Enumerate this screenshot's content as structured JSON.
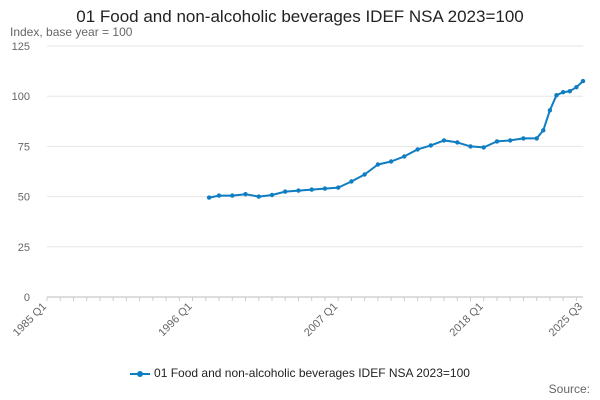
{
  "chart_data": {
    "type": "line",
    "title": "01 Food and non-alcoholic beverages IDEF NSA 2023=100",
    "subtitle": "Index, base year = 100",
    "source_label": "Source:",
    "ylim": [
      0,
      125
    ],
    "yticks": [
      0,
      25,
      50,
      75,
      100,
      125
    ],
    "x_range": [
      "1985 Q1",
      "2025 Q3"
    ],
    "xticks": [
      "1985 Q1",
      "1996 Q1",
      "2007 Q1",
      "2018 Q1",
      "2025 Q3"
    ],
    "grid": "horizontal",
    "legend_position": "bottom",
    "line_color": "#0f7dc2",
    "series": [
      {
        "name": "01 Food and non-alcoholic beverages IDEF NSA 2023=100",
        "x": [
          "1997 Q2",
          "1998 Q1",
          "1999 Q1",
          "2000 Q1",
          "2001 Q1",
          "2002 Q1",
          "2003 Q1",
          "2004 Q1",
          "2005 Q1",
          "2006 Q1",
          "2007 Q1",
          "2008 Q1",
          "2009 Q1",
          "2010 Q1",
          "2011 Q1",
          "2012 Q1",
          "2013 Q1",
          "2014 Q1",
          "2015 Q1",
          "2016 Q1",
          "2017 Q1",
          "2018 Q1",
          "2019 Q1",
          "2020 Q1",
          "2021 Q1",
          "2022 Q1",
          "2022 Q3",
          "2023 Q1",
          "2023 Q3",
          "2024 Q1",
          "2024 Q3",
          "2025 Q1",
          "2025 Q3"
        ],
        "values": [
          49.5,
          50.5,
          50.5,
          51.2,
          50.0,
          50.8,
          52.5,
          53.0,
          53.5,
          54.0,
          54.5,
          57.5,
          61.0,
          66.0,
          67.5,
          70.0,
          73.5,
          75.5,
          78.0,
          77.0,
          75.0,
          74.5,
          77.5,
          78.0,
          79.0,
          79.0,
          83.0,
          93.0,
          100.5,
          102.0,
          102.5,
          104.5,
          107.5
        ]
      }
    ]
  }
}
